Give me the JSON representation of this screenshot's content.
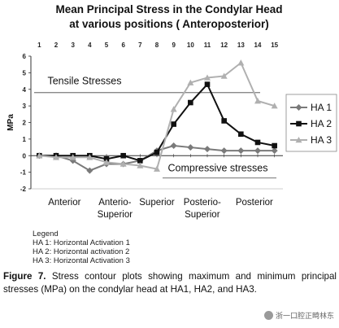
{
  "chart_data": {
    "type": "line",
    "title": [
      "Mean Principal Stress in the Condylar Head",
      "at various positions ( Anteroposterior)"
    ],
    "ylabel": "MPa",
    "ylim": [
      -2,
      6
    ],
    "yticks": [
      "-2",
      "-1",
      "0",
      "1",
      "2",
      "3",
      "4",
      "5",
      "6"
    ],
    "x": [
      1,
      2,
      3,
      4,
      5,
      6,
      7,
      8,
      9,
      10,
      11,
      12,
      13,
      14,
      15
    ],
    "xticks": [
      "1",
      "2",
      "3",
      "4",
      "5",
      "6",
      "7",
      "8",
      "9",
      "10",
      "11",
      "12",
      "13",
      "14",
      "15"
    ],
    "position_labels": [
      {
        "lines": [
          "Anterior"
        ],
        "x": 2.5
      },
      {
        "lines": [
          "Anterio-",
          "Superior"
        ],
        "x": 5.5
      },
      {
        "lines": [
          "Superior"
        ],
        "x": 8
      },
      {
        "lines": [
          "Posterio-",
          "Superior"
        ],
        "x": 10.7
      },
      {
        "lines": [
          "Posterior"
        ],
        "x": 13.8
      }
    ],
    "annotations": {
      "tensile": "Tensile Stresses",
      "compressive": "Compressive stresses"
    },
    "grid": false,
    "legend_position": "right",
    "series": [
      {
        "name": "HA 1",
        "color": "#7a7a7a",
        "marker": "diamond",
        "values": [
          0,
          0,
          -0.3,
          -0.9,
          -0.5,
          -0.5,
          -0.3,
          0.3,
          0.6,
          0.5,
          0.4,
          0.3,
          0.3,
          0.3,
          0.3
        ]
      },
      {
        "name": "HA 2",
        "color": "#111111",
        "marker": "square",
        "values": [
          0,
          0,
          0,
          0,
          -0.2,
          0,
          -0.3,
          0.2,
          1.9,
          3.2,
          4.3,
          2.1,
          1.3,
          0.8,
          0.6
        ]
      },
      {
        "name": "HA 3",
        "color": "#b0b0b0",
        "marker": "triangle",
        "values": [
          0,
          -0.1,
          -0.1,
          -0.1,
          -0.4,
          -0.5,
          -0.6,
          -0.8,
          2.8,
          4.4,
          4.7,
          4.8,
          5.6,
          3.3,
          3.0
        ]
      }
    ]
  },
  "legend_notes": {
    "heading": "Legend",
    "items": [
      "HA 1: Horizontal Activation 1",
      "HA 2: Horizontal activation 2",
      "HA 3: Horizontal Activation 3"
    ]
  },
  "caption": {
    "label": "Figure 7.",
    "text": "Stress contour plots showing maximum and minimum principal stresses (MPa) on the condylar head at HA1, HA2, and HA3."
  },
  "watermark": "浙一口腔正畸林东"
}
